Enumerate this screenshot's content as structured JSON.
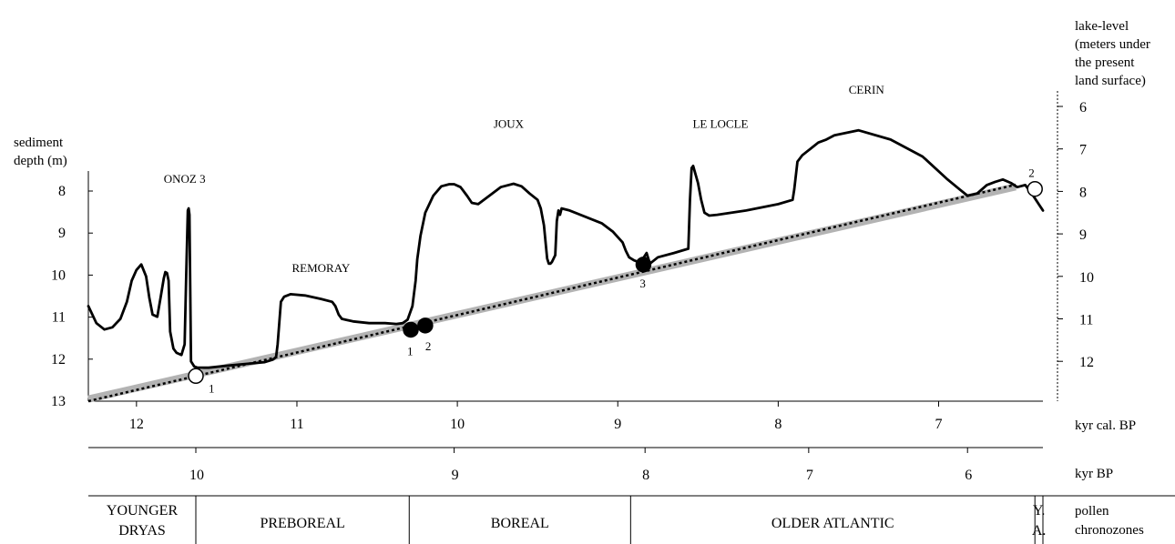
{
  "chart_data": {
    "type": "line",
    "left_axis": {
      "label_lines": [
        "sediment",
        "depth (m)"
      ],
      "ticks": [
        8,
        9,
        10,
        11,
        12,
        13
      ],
      "range": [
        7.7,
        13
      ]
    },
    "right_axis": {
      "label_lines": [
        "lake-level",
        "(meters under",
        "the present",
        "land surface)"
      ],
      "ticks": [
        6,
        7,
        8,
        9,
        10,
        11,
        12
      ]
    },
    "x_axis_cal": {
      "unit": "kyr  cal. BP",
      "ticks": [
        12,
        11,
        10,
        9,
        8,
        7
      ],
      "range": [
        12.3,
        6.35
      ]
    },
    "x_axis_bp": {
      "unit": "kyr BP",
      "ticks": [
        {
          "label": "10",
          "cal": 11.63
        },
        {
          "label": "9",
          "cal": 10.02
        },
        {
          "label": "8",
          "cal": 8.83
        },
        {
          "label": "7",
          "cal": 7.81
        },
        {
          "label": "6",
          "cal": 6.82
        }
      ]
    },
    "chronozones": {
      "title": "pollen chronozones",
      "title_lines": [
        "pollen",
        "chronozones"
      ],
      "zones": [
        {
          "lines": [
            "YOUNGER",
            "DRYAS"
          ],
          "start": 12.3,
          "end": 11.63
        },
        {
          "lines": [
            "PREBOREAL"
          ],
          "start": 11.63,
          "end": 10.3
        },
        {
          "lines": [
            "BOREAL"
          ],
          "start": 10.3,
          "end": 8.92
        },
        {
          "lines": [
            "OLDER   ATLANTIC"
          ],
          "start": 8.92,
          "end": 6.4
        },
        {
          "lines": [
            "Y.",
            "A."
          ],
          "start": 6.4,
          "end": 6.35
        }
      ]
    },
    "site_labels": [
      {
        "text": "ONOZ 3",
        "x": 11.7,
        "y": 7.8
      },
      {
        "text": "REMORAY",
        "x": 10.85,
        "y": 9.9
      },
      {
        "text": "JOUX",
        "x": 9.68,
        "y": 6.5
      },
      {
        "text": "LE LOCLE",
        "x": 8.36,
        "y": 6.5
      },
      {
        "text": "CERIN",
        "x": 7.45,
        "y": 5.7
      }
    ],
    "lake_level_curve": {
      "x": [
        12.3,
        12.25,
        12.2,
        12.15,
        12.1,
        12.06,
        12.03,
        12.0,
        11.97,
        11.94,
        11.92,
        11.9,
        11.87,
        11.85,
        11.83,
        11.82,
        11.81,
        11.8,
        11.79,
        11.77,
        11.75,
        11.72,
        11.7,
        11.69,
        11.68,
        11.675,
        11.67,
        11.66,
        11.64,
        11.62,
        11.55,
        11.4,
        11.2,
        11.15,
        11.13,
        11.12,
        11.1,
        11.08,
        11.04,
        10.95,
        10.85,
        10.78,
        10.76,
        10.74,
        10.72,
        10.65,
        10.55,
        10.45,
        10.38,
        10.34,
        10.31,
        10.28,
        10.26,
        10.25,
        10.23,
        10.2,
        10.15,
        10.1,
        10.05,
        10.02,
        9.98,
        9.94,
        9.91,
        9.87,
        9.8,
        9.73,
        9.65,
        9.6,
        9.55,
        9.5,
        9.48,
        9.46,
        9.44,
        9.43,
        9.42,
        9.41,
        9.39,
        9.38,
        9.37,
        9.36,
        9.35,
        9.3,
        9.1,
        9.03,
        8.97,
        8.95,
        8.93,
        8.9,
        8.88,
        8.85,
        8.82,
        8.8,
        8.75,
        8.65,
        8.56,
        8.55,
        8.54,
        8.53,
        8.5,
        8.48,
        8.46,
        8.43,
        8.38,
        8.2,
        8.0,
        7.91,
        7.9,
        7.88,
        7.85,
        7.75,
        7.7,
        7.65,
        7.5,
        7.3,
        7.1,
        6.95,
        6.87,
        6.82,
        6.76,
        6.7,
        6.65,
        6.6,
        6.55,
        6.51,
        6.46,
        6.42,
        6.35
      ],
      "y": [
        10.7,
        11.1,
        11.25,
        11.2,
        11.0,
        10.6,
        10.1,
        9.85,
        9.72,
        10.0,
        10.5,
        10.9,
        10.95,
        10.5,
        10.05,
        9.9,
        9.92,
        10.1,
        11.3,
        11.7,
        11.8,
        11.85,
        11.6,
        10.0,
        8.45,
        8.4,
        8.55,
        12.0,
        12.12,
        12.15,
        12.15,
        12.09,
        12.02,
        11.96,
        11.9,
        11.6,
        10.6,
        10.48,
        10.42,
        10.45,
        10.53,
        10.6,
        10.7,
        10.9,
        11.0,
        11.06,
        11.1,
        11.1,
        11.12,
        11.1,
        11.02,
        10.7,
        10.1,
        9.6,
        9.05,
        8.5,
        8.1,
        7.88,
        7.83,
        7.83,
        7.9,
        8.1,
        8.27,
        8.3,
        8.1,
        7.9,
        7.82,
        7.88,
        8.05,
        8.2,
        8.4,
        8.8,
        9.58,
        9.7,
        9.7,
        9.66,
        9.5,
        8.7,
        8.45,
        8.55,
        8.4,
        8.45,
        8.75,
        8.95,
        9.2,
        9.4,
        9.55,
        9.62,
        9.65,
        9.62,
        9.45,
        9.7,
        9.55,
        9.45,
        9.35,
        8.2,
        7.45,
        7.4,
        7.8,
        8.2,
        8.5,
        8.57,
        8.55,
        8.45,
        8.3,
        8.2,
        7.95,
        7.3,
        7.15,
        6.85,
        6.78,
        6.68,
        6.56,
        6.78,
        7.18,
        7.7,
        7.95,
        8.1,
        8.05,
        7.85,
        7.78,
        7.72,
        7.8,
        7.9,
        7.85,
        8.05,
        8.45
      ]
    },
    "regression_lines": [
      {
        "style": "grey-band",
        "x": [
          12.3,
          6.52
        ],
        "y": [
          12.95,
          7.9
        ]
      },
      {
        "style": "dotted",
        "x": [
          12.3,
          6.52
        ],
        "y": [
          13.0,
          7.85
        ]
      }
    ],
    "points": [
      {
        "label": "1",
        "type": "open",
        "x": 11.63,
        "y": 12.4
      },
      {
        "label": "1",
        "type": "filled",
        "x": 10.29,
        "y": 11.3
      },
      {
        "label": "2",
        "type": "filled",
        "x": 10.2,
        "y": 11.2
      },
      {
        "label": "3",
        "type": "filled",
        "x": 8.84,
        "y": 9.75
      },
      {
        "label": "2",
        "type": "open",
        "x": 6.4,
        "y": 7.95
      }
    ],
    "colors": {
      "line": "#000000",
      "band": "#b3b3b3",
      "background": "#ffffff"
    }
  }
}
